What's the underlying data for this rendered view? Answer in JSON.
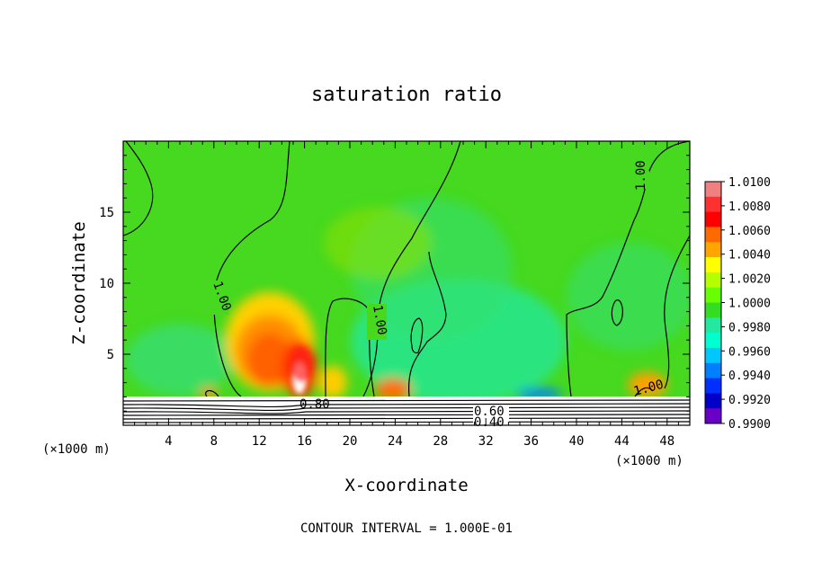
{
  "chart_data": {
    "type": "heatmap",
    "title": "saturation ratio",
    "xlabel": "X-coordinate",
    "ylabel": "Z-coordinate",
    "x_unit_left": "(×1000 m)",
    "x_unit_right": "(×1000 m)",
    "footer": "CONTOUR INTERVAL = 1.000E-01",
    "xlim": [
      0,
      50
    ],
    "ylim": [
      0,
      20
    ],
    "x_ticks": [
      4,
      8,
      12,
      16,
      20,
      24,
      28,
      32,
      36,
      40,
      44,
      48
    ],
    "y_ticks": [
      5,
      10,
      15
    ],
    "colorbar": {
      "labels": [
        "1.0100",
        "1.0080",
        "1.0060",
        "1.0040",
        "1.0020",
        "1.0000",
        "0.9980",
        "0.9960",
        "0.9940",
        "0.9920",
        "0.9900"
      ],
      "colors": [
        "#f08080",
        "#ff3030",
        "#ff0000",
        "#ff6a00",
        "#ffa500",
        "#ffff00",
        "#b5ff00",
        "#6aff00",
        "#33dd22",
        "#22e8a0",
        "#00ffd0",
        "#00c8ff",
        "#0080ff",
        "#0030ff",
        "#0000c8",
        "#6a00c8"
      ]
    },
    "contour_labels": [
      "1.00",
      "1.00",
      "1.00",
      "1.00",
      "1.00",
      "0.80",
      "0.60",
      "0.40"
    ]
  }
}
